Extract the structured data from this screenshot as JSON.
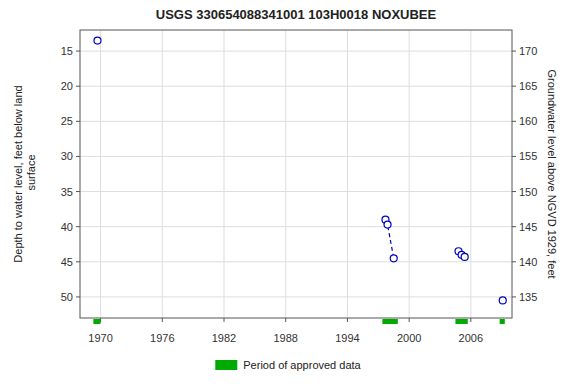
{
  "chart_data": {
    "type": "scatter",
    "title": "USGS 330654088341001 103H0018  NOXUBEE",
    "y_label": "Depth to water level, feet below land\n surface",
    "y2_label": "Groundwater level above NGVD 1929, feet",
    "xlim": [
      1968,
      2010
    ],
    "xticks": [
      1970,
      1976,
      1982,
      1988,
      1994,
      2000,
      2006
    ],
    "ylim": [
      53,
      12
    ],
    "yticks": [
      15,
      20,
      25,
      30,
      35,
      40,
      45,
      50
    ],
    "y2lim": [
      132,
      173
    ],
    "y2ticks": [
      170,
      165,
      160,
      155,
      150,
      145,
      140,
      135
    ],
    "grid": true,
    "legend": "bottom",
    "series": [
      {
        "type": "scatter",
        "marker": "circle",
        "color": "#0000bb",
        "x": [
          1969.7,
          1997.7,
          1997.9,
          1998.5,
          2004.8,
          2005.1,
          2005.4,
          2009.1
        ],
        "values": [
          13.5,
          39.0,
          39.7,
          44.5,
          43.5,
          44.0,
          44.3,
          50.5
        ]
      },
      {
        "type": "line",
        "line_style": "dashed",
        "color": "#0000bb",
        "x": [
          1997.7,
          1997.9,
          1998.5
        ],
        "values": [
          39.0,
          39.7,
          44.5
        ]
      }
    ],
    "periods": {
      "name": "Period of approved data",
      "color": "#00aa00",
      "starts": [
        1969.3,
        1997.4,
        2004.5,
        2008.8
      ],
      "ends": [
        1970.0,
        1998.9,
        2005.7,
        2009.3
      ]
    }
  }
}
